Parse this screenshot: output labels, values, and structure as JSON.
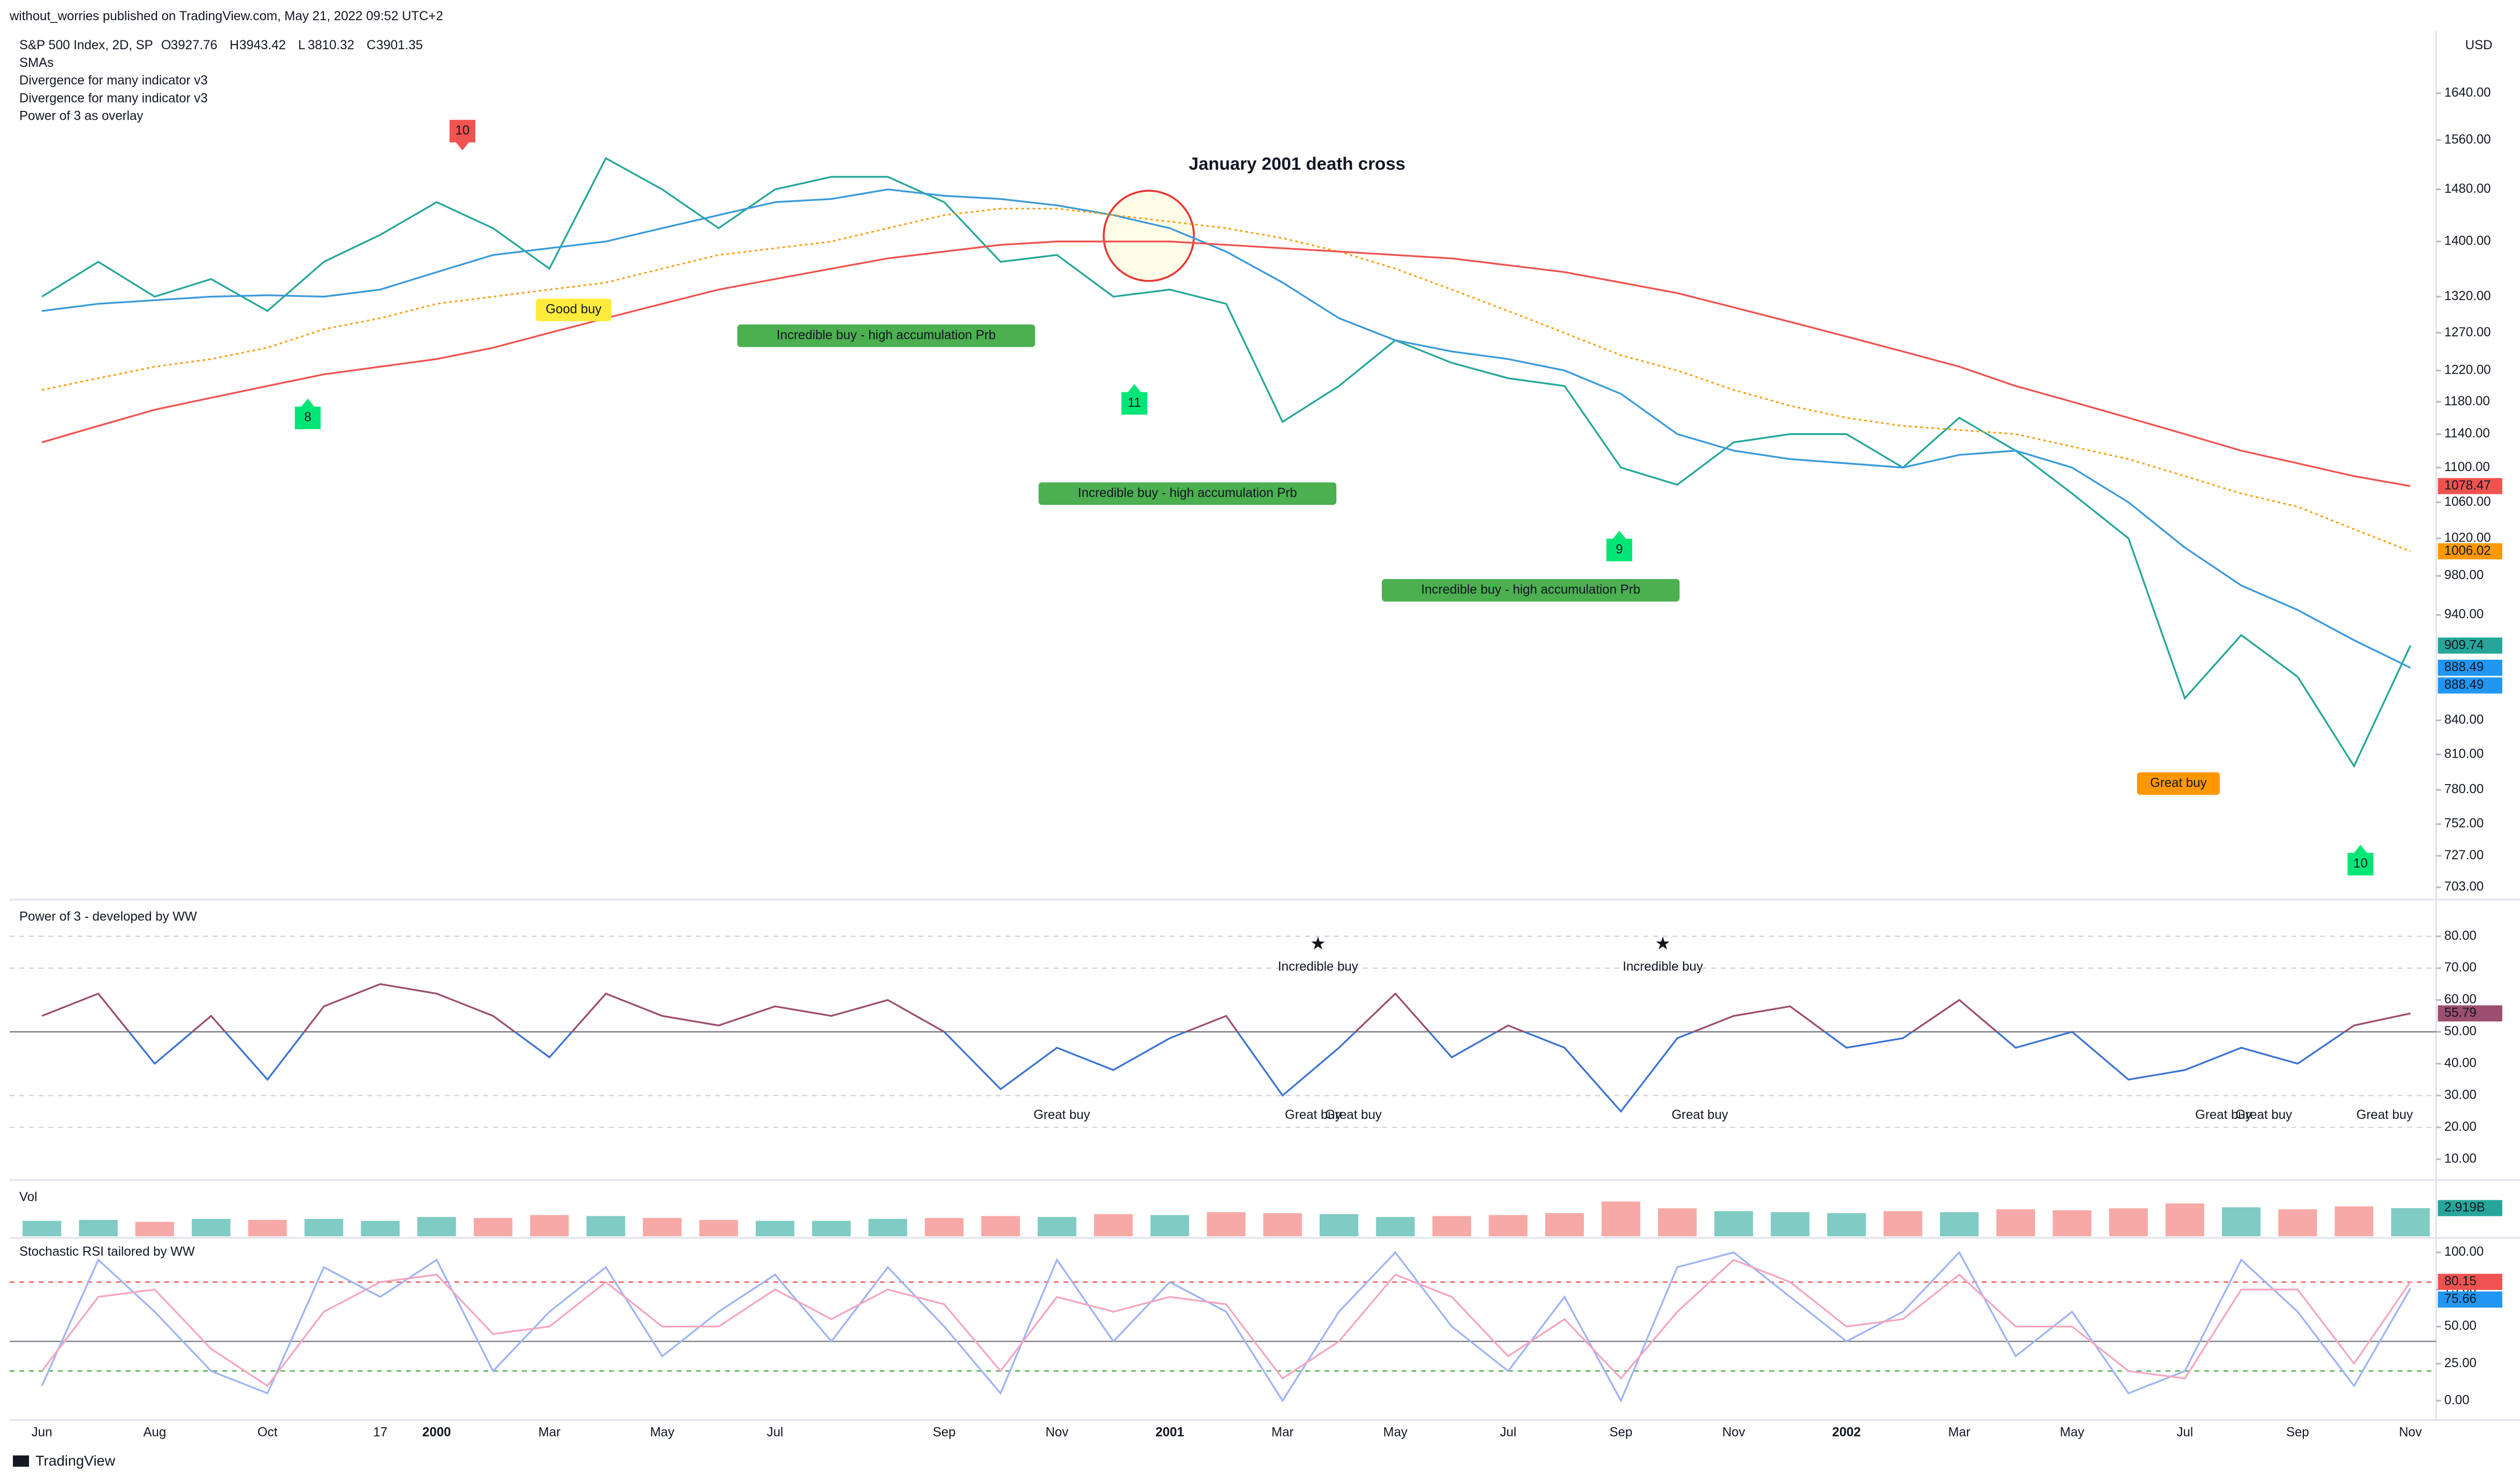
{
  "header": {
    "publisher": "without_worries published on TradingView.com, May 21, 2022 09:52 UTC+2",
    "currency": "USD",
    "footer": "TradingView"
  },
  "chart_data": [
    {
      "type": "line",
      "title": "S&P 500 Index, 2D, SP",
      "ohlc": [
        {
          "key": "O",
          "value": 3927.76
        },
        {
          "key": "H",
          "value": 3943.42
        },
        {
          "key": "L",
          "value": 3810.32
        },
        {
          "key": "C",
          "value": 3901.35
        }
      ],
      "legend_lines": [
        "SMAs",
        "Divergence for many indicator v3",
        "Divergence for many indicator v3",
        "Power of 3 as overlay"
      ],
      "log_scale": true,
      "ylim": [
        695,
        1746
      ],
      "yticks": [
        {
          "value": 1640,
          "label": "1640.00"
        },
        {
          "value": 1560,
          "label": "1560.00"
        },
        {
          "value": 1480,
          "label": "1480.00"
        },
        {
          "value": 1400,
          "label": "1400.00"
        },
        {
          "value": 1320,
          "label": "1320.00"
        },
        {
          "value": 1270,
          "label": "1270.00"
        },
        {
          "value": 1220,
          "label": "1220.00"
        },
        {
          "value": 1180,
          "label": "1180.00"
        },
        {
          "value": 1140,
          "label": "1140.00"
        },
        {
          "value": 1100,
          "label": "1100.00"
        },
        {
          "value": 1060,
          "label": "1060.00"
        },
        {
          "value": 1020,
          "label": "1020.00"
        },
        {
          "value": 980,
          "label": "980.00"
        },
        {
          "value": 940,
          "label": "940.00"
        },
        {
          "value": 840,
          "label": "840.00"
        },
        {
          "value": 810,
          "label": "810.00"
        },
        {
          "value": 780,
          "label": "780.00"
        },
        {
          "value": 752,
          "label": "752.00"
        },
        {
          "value": 727,
          "label": "727.00"
        },
        {
          "value": 703,
          "label": "703.00"
        }
      ],
      "categories": [
        "Jun",
        null,
        "Aug",
        null,
        "Oct",
        null,
        "17",
        "2000",
        null,
        "Mar",
        null,
        "May",
        null,
        "Jul",
        null,
        null,
        "Sep",
        null,
        "Nov",
        null,
        "2001",
        null,
        "Mar",
        null,
        "May",
        null,
        "Jul",
        null,
        "Sep",
        null,
        "Nov",
        null,
        "2002",
        null,
        "Mar",
        null,
        "May",
        null,
        "Jul",
        null,
        "Sep",
        null,
        "Nov"
      ],
      "series": [
        {
          "color": "#26a69a",
          "values": [
            1320,
            1370,
            1320,
            1345,
            1300,
            1370,
            1410,
            1460,
            1420,
            1360,
            1530,
            1480,
            1420,
            1480,
            1500,
            1500,
            1460,
            1370,
            1380,
            1320,
            1330,
            1310,
            1155,
            1200,
            1260,
            1230,
            1210,
            1200,
            1100,
            1080,
            1130,
            1140,
            1140,
            1100,
            1160,
            1120,
            1070,
            1020,
            860,
            920,
            880,
            800,
            909.74
          ]
        },
        {
          "color": "#3a9ad9",
          "values": [
            1300,
            1310,
            1315,
            1320,
            1322,
            1320,
            1330,
            1355,
            1380,
            1390,
            1400,
            1420,
            1440,
            1460,
            1465,
            1480,
            1470,
            1465,
            1455,
            1440,
            1420,
            1385,
            1340,
            1290,
            1260,
            1245,
            1235,
            1220,
            1190,
            1140,
            1120,
            1110,
            1105,
            1100,
            1115,
            1120,
            1100,
            1060,
            1010,
            970,
            945,
            915,
            888.49
          ]
        },
        {
          "color": "#ff9800",
          "style": "dotted",
          "values": [
            1195,
            1210,
            1225,
            1235,
            1250,
            1275,
            1290,
            1310,
            1320,
            1330,
            1340,
            1360,
            1380,
            1390,
            1400,
            1420,
            1440,
            1450,
            1450,
            1440,
            1430,
            1420,
            1405,
            1385,
            1360,
            1330,
            1300,
            1270,
            1240,
            1220,
            1195,
            1175,
            1160,
            1150,
            1145,
            1140,
            1125,
            1110,
            1090,
            1070,
            1055,
            1030,
            1006.02
          ]
        },
        {
          "color": "#ef5350",
          "values": [
            1130,
            1150,
            1170,
            1185,
            1200,
            1215,
            1225,
            1235,
            1250,
            1270,
            1290,
            1310,
            1330,
            1345,
            1360,
            1375,
            1385,
            1395,
            1400,
            1400,
            1400,
            1395,
            1390,
            1385,
            1380,
            1375,
            1365,
            1355,
            1340,
            1325,
            1305,
            1285,
            1265,
            1245,
            1225,
            1200,
            1180,
            1160,
            1140,
            1120,
            1105,
            1090,
            1078.47
          ]
        }
      ],
      "last_labels": [
        {
          "value": 1078.47,
          "color": "#ef5350"
        },
        {
          "value": 1006.02,
          "color": "#ff9800"
        },
        {
          "value": 909.74,
          "color": "#26a69a"
        },
        {
          "value": 888.49,
          "color": "#2196f3"
        },
        {
          "value": 888.49,
          "color": "#2196f3"
        }
      ],
      "annotations": [
        {
          "text": "January 2001 death cross",
          "color": "#e84c4c"
        },
        {
          "text": "10",
          "color": "#f05350"
        },
        {
          "text": "8",
          "color": "#00e676"
        },
        {
          "text": "11",
          "color": "#00e676"
        },
        {
          "text": "9",
          "color": "#00e676"
        },
        {
          "text": "10",
          "color": "#00e676"
        },
        {
          "text": "Good buy",
          "color": "#ffeb3b"
        },
        {
          "text": "Incredible buy - high accumulation Prb",
          "color": "#4caf50"
        },
        {
          "text": "Incredible buy - high accumulation Prb",
          "color": "#4caf50"
        },
        {
          "text": "Incredible buy - high accumulation Prb",
          "color": "#4caf50"
        },
        {
          "text": "Great buy",
          "color": "#ff9800"
        }
      ]
    },
    {
      "type": "line",
      "title": "Power of 3 - developed by WW",
      "ylim": [
        5,
        89
      ],
      "yticks": [
        {
          "value": 80,
          "label": "80.00"
        },
        {
          "value": 70,
          "label": "70.00"
        },
        {
          "value": 60,
          "label": "60.00"
        },
        {
          "value": 50,
          "label": "50.00"
        },
        {
          "value": 40,
          "label": "40.00"
        },
        {
          "value": 30,
          "label": "30.00"
        },
        {
          "value": 20,
          "label": "20.00"
        },
        {
          "value": 10,
          "label": "10.00"
        }
      ],
      "hlines": [
        {
          "value": 80,
          "color": "#d1d4dc",
          "style": "dashed"
        },
        {
          "value": 70,
          "color": "#d1d4dc",
          "style": "dashed"
        },
        {
          "value": 50,
          "color": "#787b86",
          "style": "solid"
        },
        {
          "value": 30,
          "color": "#d1d4dc",
          "style": "dashed"
        },
        {
          "value": 20,
          "color": "#d1d4dc",
          "style": "dashed"
        }
      ],
      "series": [
        {
          "color": "#3d74d0",
          "color_above": "#9c4f6e",
          "split": 50,
          "values": [
            55,
            62,
            40,
            55,
            35,
            58,
            65,
            62,
            55,
            42,
            62,
            55,
            52,
            58,
            55,
            60,
            50,
            32,
            45,
            38,
            48,
            55,
            30,
            45,
            62,
            42,
            52,
            45,
            25,
            48,
            55,
            58,
            45,
            48,
            60,
            45,
            50,
            35,
            38,
            45,
            40,
            52,
            55.79
          ]
        }
      ],
      "last_labels": [
        {
          "value": 55.79,
          "color": "#9c4f6e"
        }
      ],
      "annotations": [
        {
          "text": "Incredible buy",
          "color": "#4caf50"
        },
        {
          "text": "Incredible buy",
          "color": "#4caf50"
        },
        {
          "text": "Great buy",
          "color": "#ff9800"
        },
        {
          "text": "Great buy",
          "color": "#ff9800"
        },
        {
          "text": "Great buy",
          "color": "#ff9800"
        },
        {
          "text": "Great buy",
          "color": "#ff9800"
        },
        {
          "text": "Great buy",
          "color": "#ff9800"
        },
        {
          "text": "Great buy",
          "color": "#ff9800"
        },
        {
          "text": "Great buy",
          "color": "#ff9800"
        }
      ]
    },
    {
      "type": "bar",
      "title": "Vol",
      "ylim": [
        0,
        5
      ],
      "series": [
        {
          "color": "#80cbc4",
          "color_down": "#f7a9a7",
          "values": [
            1.6,
            1.7,
            1.5,
            1.8,
            1.7,
            1.8,
            1.6,
            2.0,
            1.9,
            2.2,
            2.1,
            1.9,
            1.7,
            1.6,
            1.6,
            1.8,
            1.9,
            2.1,
            2.0,
            2.3,
            2.2,
            2.5,
            2.4,
            2.3,
            2.0,
            2.1,
            2.2,
            2.4,
            3.6,
            2.9,
            2.6,
            2.5,
            2.4,
            2.6,
            2.5,
            2.8,
            2.7,
            2.9,
            3.4,
            3.0,
            2.8,
            3.1,
            2.919
          ]
        }
      ],
      "last_labels": [
        {
          "value": 2.919,
          "label": "2.919B",
          "color": "#26a69a"
        }
      ]
    },
    {
      "type": "line",
      "title": "Stochastic RSI tailored by WW",
      "ylim": [
        -13,
        106.5
      ],
      "yticks": [
        {
          "value": 100,
          "label": "100.00"
        },
        {
          "value": 75,
          "label": "75.00"
        },
        {
          "value": 50,
          "label": "50.00"
        },
        {
          "value": 25,
          "label": "25.00"
        },
        {
          "value": 0,
          "label": "0.00"
        }
      ],
      "hlines": [
        {
          "value": 80,
          "color": "#ef5350",
          "style": "dashed"
        },
        {
          "value": 40,
          "color": "#787b86",
          "style": "solid"
        },
        {
          "value": 20,
          "color": "#4caf50",
          "style": "dashed"
        }
      ],
      "series": [
        {
          "color": "#9fb4f5",
          "values": [
            10,
            95,
            60,
            20,
            5,
            90,
            70,
            95,
            20,
            60,
            90,
            30,
            60,
            85,
            40,
            90,
            50,
            5,
            95,
            40,
            80,
            60,
            0,
            60,
            100,
            50,
            20,
            70,
            0,
            90,
            100,
            70,
            40,
            60,
            100,
            30,
            60,
            5,
            20,
            95,
            60,
            10,
            75.66
          ]
        },
        {
          "color": "#f4a7c0",
          "values": [
            20,
            70,
            75,
            35,
            10,
            60,
            80,
            85,
            45,
            50,
            80,
            50,
            50,
            75,
            55,
            75,
            65,
            20,
            70,
            60,
            70,
            65,
            15,
            40,
            85,
            70,
            30,
            55,
            15,
            60,
            95,
            80,
            50,
            55,
            85,
            50,
            50,
            20,
            15,
            75,
            75,
            25,
            80.15
          ]
        }
      ],
      "last_labels": [
        {
          "value": 80.15,
          "color": "#ef5350"
        },
        {
          "value": 75.66,
          "color": "#2196f3"
        }
      ]
    }
  ]
}
